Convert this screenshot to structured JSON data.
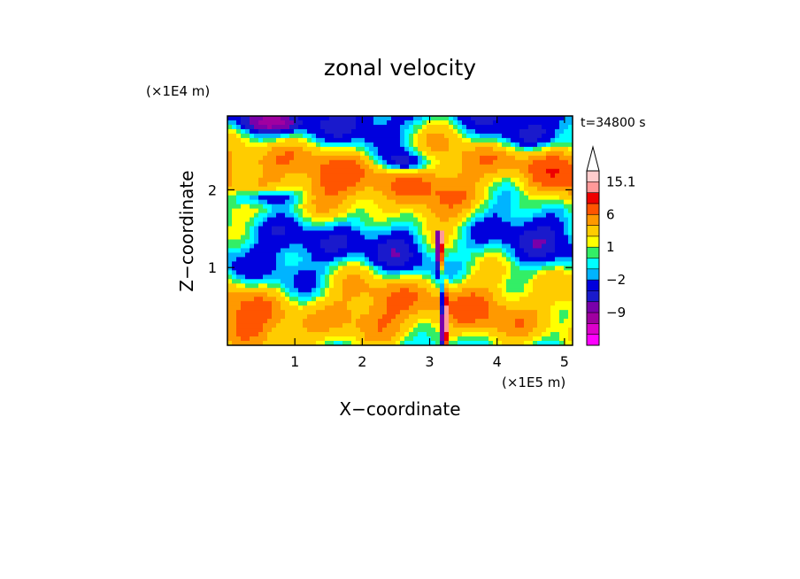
{
  "chart_data": {
    "type": "heatmap",
    "title": "zonal velocity",
    "xlabel": "X−coordinate",
    "ylabel": "Z−coordinate",
    "x_unit": "(×1E5 m)",
    "y_unit": "(×1E4 m)",
    "time_label": "t=34800 s",
    "xlim": [
      0,
      5.12
    ],
    "ylim": [
      0,
      2.95
    ],
    "x_ticks": [
      1,
      2,
      3,
      4,
      5
    ],
    "y_ticks": [
      1,
      2
    ],
    "x_tick_labels": [
      "1",
      "2",
      "3",
      "4",
      "5"
    ],
    "y_tick_labels": [
      "1",
      "2"
    ],
    "colorbar": {
      "levels": [
        -15,
        -12,
        -9,
        -6,
        -4,
        -2,
        -1,
        0,
        1,
        2,
        4,
        6,
        9,
        12,
        15.1
      ],
      "tick_labels": [
        {
          "level": 15.1,
          "label": "15.1"
        },
        {
          "level": 6,
          "label": "6"
        },
        {
          "level": 1,
          "label": "1"
        },
        {
          "level": -2,
          "label": "−2"
        },
        {
          "level": -9,
          "label": "−9"
        }
      ],
      "colors": [
        "#ff00ff",
        "#dd00cc",
        "#a000a0",
        "#7a00aa",
        "#1a1acc",
        "#0000dd",
        "#00b4ff",
        "#00ffff",
        "#33ee66",
        "#ffff00",
        "#ffcc00",
        "#ff9900",
        "#ff5500",
        "#ee0000",
        "#ff9999",
        "#ffcccc"
      ]
    },
    "grid": false,
    "legend": "right"
  }
}
